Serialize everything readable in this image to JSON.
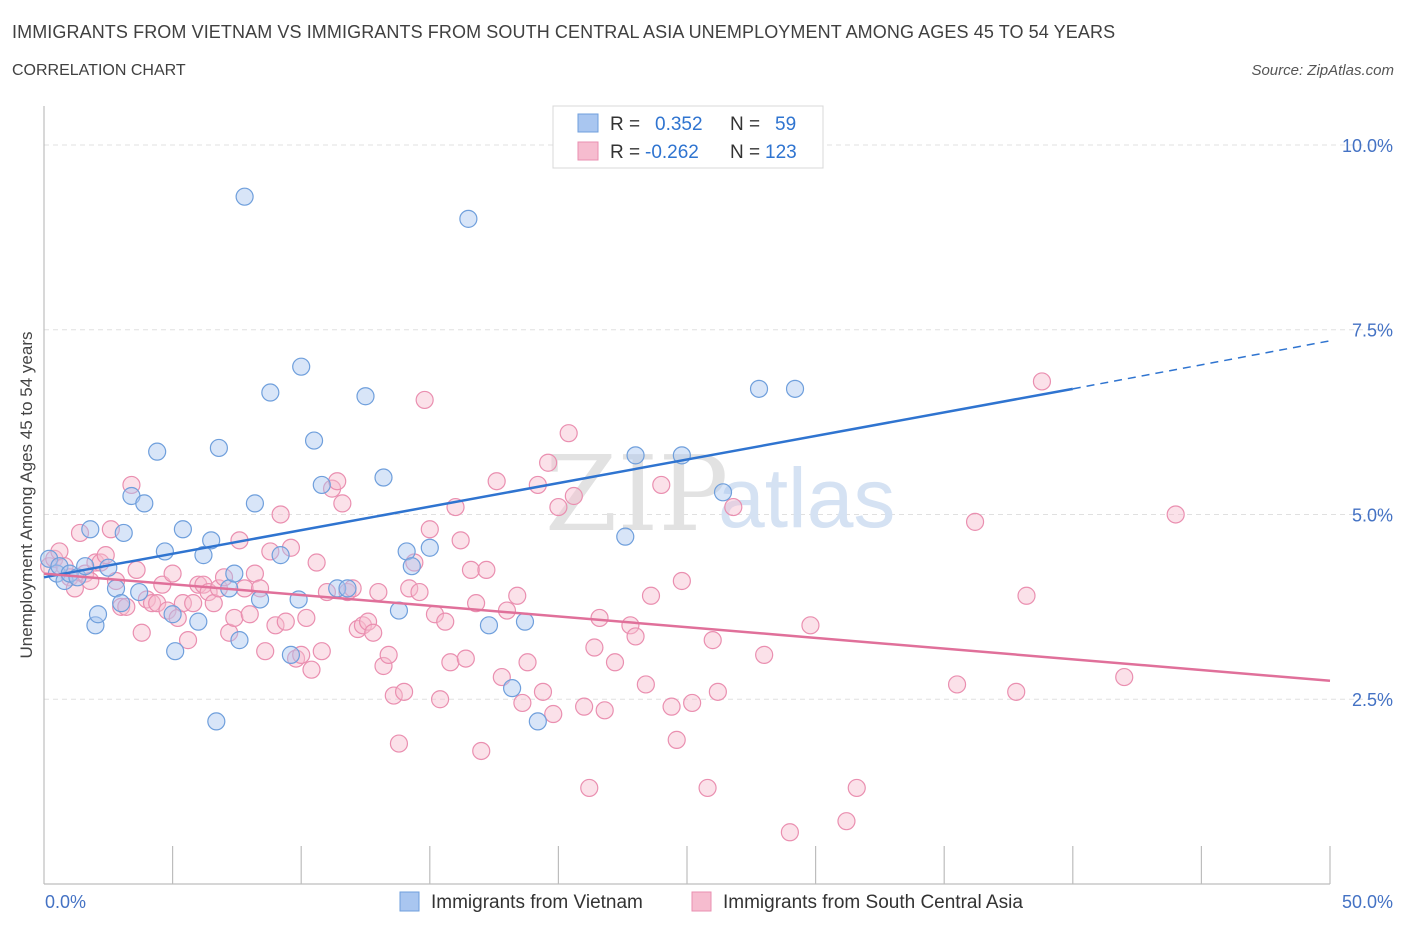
{
  "header": {
    "title": "IMMIGRANTS FROM VIETNAM VS IMMIGRANTS FROM SOUTH CENTRAL ASIA UNEMPLOYMENT AMONG AGES 45 TO 54 YEARS",
    "subtitle": "CORRELATION CHART",
    "source": "Source: ZipAtlas.com"
  },
  "watermark": {
    "zip": "ZIP",
    "atlas": "atlas"
  },
  "colors": {
    "blue_fill": "#a9c6f0",
    "blue_stroke": "#6f9fdc",
    "blue_line": "#2f74d0",
    "pink_fill": "#f6bccf",
    "pink_stroke": "#ea8fb0",
    "pink_line": "#e0709a",
    "axis_label": "#4472c4",
    "grid": "#e0e0e0"
  },
  "chart_data": {
    "type": "scatter",
    "title": "IMMIGRANTS FROM VIETNAM VS IMMIGRANTS FROM SOUTH CENTRAL ASIA UNEMPLOYMENT AMONG AGES 45 TO 54 YEARS",
    "xlabel": "",
    "ylabel": "Unemployment Among Ages 45 to 54 years",
    "xlim": [
      0,
      50
    ],
    "ylim": [
      0,
      10.5
    ],
    "x_tick_labels": [
      "0.0%",
      "50.0%"
    ],
    "y_ticks": [
      2.5,
      5.0,
      7.5,
      10.0
    ],
    "y_tick_labels": [
      "2.5%",
      "5.0%",
      "7.5%",
      "10.0%"
    ],
    "legend": {
      "position": "top-center",
      "rows": [
        {
          "r_label": "R =",
          "r_value": "0.352",
          "n_label": "N =",
          "n_value": "59"
        },
        {
          "r_label": "R =",
          "r_value": "-0.262",
          "n_label": "N =",
          "n_value": "123"
        }
      ]
    },
    "bottom_legend": [
      "Immigrants from Vietnam",
      "Immigrants from South Central Asia"
    ],
    "series": [
      {
        "name": "Immigrants from Vietnam",
        "r": 0.352,
        "n": 59,
        "trend": {
          "x0": 0,
          "y0": 4.15,
          "x1": 40,
          "y1": 6.7,
          "dash_to_x": 50,
          "dash_to_y": 7.35
        },
        "points": [
          [
            0.2,
            4.4
          ],
          [
            0.5,
            4.2
          ],
          [
            0.6,
            4.3
          ],
          [
            0.8,
            4.1
          ],
          [
            1.0,
            4.2
          ],
          [
            1.3,
            4.15
          ],
          [
            1.6,
            4.3
          ],
          [
            1.8,
            4.8
          ],
          [
            2.0,
            3.5
          ],
          [
            2.1,
            3.65
          ],
          [
            2.5,
            4.28
          ],
          [
            2.8,
            4.0
          ],
          [
            3.0,
            3.8
          ],
          [
            3.1,
            4.75
          ],
          [
            3.4,
            5.25
          ],
          [
            3.7,
            3.95
          ],
          [
            3.9,
            5.15
          ],
          [
            4.4,
            5.85
          ],
          [
            4.7,
            4.5
          ],
          [
            5.0,
            3.65
          ],
          [
            5.1,
            3.15
          ],
          [
            5.4,
            4.8
          ],
          [
            6.0,
            3.55
          ],
          [
            6.2,
            4.45
          ],
          [
            6.5,
            4.65
          ],
          [
            6.7,
            2.2
          ],
          [
            6.8,
            5.9
          ],
          [
            7.2,
            4.0
          ],
          [
            7.4,
            4.2
          ],
          [
            7.6,
            3.3
          ],
          [
            7.8,
            9.3
          ],
          [
            8.2,
            5.15
          ],
          [
            8.4,
            3.85
          ],
          [
            8.8,
            6.65
          ],
          [
            9.2,
            4.45
          ],
          [
            9.6,
            3.1
          ],
          [
            9.9,
            3.85
          ],
          [
            10.0,
            7.0
          ],
          [
            10.5,
            6.0
          ],
          [
            10.8,
            5.4
          ],
          [
            11.4,
            4.0
          ],
          [
            11.8,
            4.0
          ],
          [
            12.5,
            6.6
          ],
          [
            13.2,
            5.5
          ],
          [
            13.8,
            3.7
          ],
          [
            14.1,
            4.5
          ],
          [
            14.3,
            4.3
          ],
          [
            15.0,
            4.55
          ],
          [
            16.5,
            9.0
          ],
          [
            17.3,
            3.5
          ],
          [
            18.2,
            2.65
          ],
          [
            18.7,
            3.55
          ],
          [
            19.2,
            2.2
          ],
          [
            22.6,
            4.7
          ],
          [
            23.0,
            5.8
          ],
          [
            24.8,
            5.8
          ],
          [
            26.4,
            5.3
          ],
          [
            27.8,
            6.7
          ],
          [
            29.2,
            6.7
          ]
        ]
      },
      {
        "name": "Immigrants from South Central Asia",
        "r": -0.262,
        "n": 123,
        "trend": {
          "x0": 0,
          "y0": 4.2,
          "x1": 50,
          "y1": 2.75
        },
        "points": [
          [
            0.2,
            4.3
          ],
          [
            0.4,
            4.4
          ],
          [
            0.6,
            4.5
          ],
          [
            0.8,
            4.3
          ],
          [
            1.0,
            4.15
          ],
          [
            1.2,
            4.0
          ],
          [
            1.4,
            4.75
          ],
          [
            1.6,
            4.2
          ],
          [
            1.8,
            4.1
          ],
          [
            2.0,
            4.35
          ],
          [
            2.2,
            4.35
          ],
          [
            2.4,
            4.45
          ],
          [
            2.6,
            4.8
          ],
          [
            2.8,
            4.1
          ],
          [
            3.0,
            3.75
          ],
          [
            3.2,
            3.75
          ],
          [
            3.4,
            5.4
          ],
          [
            3.6,
            4.25
          ],
          [
            3.8,
            3.4
          ],
          [
            4.0,
            3.85
          ],
          [
            4.2,
            3.8
          ],
          [
            4.4,
            3.8
          ],
          [
            4.6,
            4.05
          ],
          [
            4.8,
            3.7
          ],
          [
            5.0,
            4.2
          ],
          [
            5.2,
            3.6
          ],
          [
            5.4,
            3.8
          ],
          [
            5.6,
            3.3
          ],
          [
            5.8,
            3.8
          ],
          [
            6.0,
            4.05
          ],
          [
            6.2,
            4.05
          ],
          [
            6.4,
            3.95
          ],
          [
            6.6,
            3.8
          ],
          [
            6.8,
            4.0
          ],
          [
            7.0,
            4.15
          ],
          [
            7.2,
            3.4
          ],
          [
            7.4,
            3.6
          ],
          [
            7.6,
            4.65
          ],
          [
            7.8,
            4.0
          ],
          [
            8.0,
            3.65
          ],
          [
            8.2,
            4.2
          ],
          [
            8.4,
            4.0
          ],
          [
            8.6,
            3.15
          ],
          [
            8.8,
            4.5
          ],
          [
            9.0,
            3.5
          ],
          [
            9.2,
            5.0
          ],
          [
            9.4,
            3.55
          ],
          [
            9.6,
            4.55
          ],
          [
            9.8,
            3.05
          ],
          [
            10.0,
            3.1
          ],
          [
            10.2,
            3.6
          ],
          [
            10.4,
            2.9
          ],
          [
            10.6,
            4.35
          ],
          [
            10.8,
            3.15
          ],
          [
            11.0,
            3.95
          ],
          [
            11.2,
            5.35
          ],
          [
            11.4,
            5.45
          ],
          [
            11.6,
            5.15
          ],
          [
            11.8,
            3.95
          ],
          [
            12.0,
            4.0
          ],
          [
            12.2,
            3.45
          ],
          [
            12.4,
            3.5
          ],
          [
            12.6,
            3.55
          ],
          [
            12.8,
            3.4
          ],
          [
            13.0,
            3.95
          ],
          [
            13.2,
            2.95
          ],
          [
            13.4,
            3.1
          ],
          [
            13.6,
            2.55
          ],
          [
            13.8,
            1.9
          ],
          [
            14.0,
            2.6
          ],
          [
            14.2,
            4.0
          ],
          [
            14.4,
            4.35
          ],
          [
            14.6,
            3.95
          ],
          [
            14.8,
            6.55
          ],
          [
            15.0,
            4.8
          ],
          [
            15.2,
            3.65
          ],
          [
            15.4,
            2.5
          ],
          [
            15.6,
            3.55
          ],
          [
            15.8,
            3.0
          ],
          [
            16.0,
            5.1
          ],
          [
            16.2,
            4.65
          ],
          [
            16.4,
            3.05
          ],
          [
            16.6,
            4.25
          ],
          [
            16.8,
            3.8
          ],
          [
            17.0,
            1.8
          ],
          [
            17.2,
            4.25
          ],
          [
            17.6,
            5.45
          ],
          [
            17.8,
            2.8
          ],
          [
            18.0,
            3.7
          ],
          [
            18.4,
            3.9
          ],
          [
            18.6,
            2.45
          ],
          [
            18.8,
            3.0
          ],
          [
            19.2,
            5.4
          ],
          [
            19.4,
            2.6
          ],
          [
            19.6,
            5.7
          ],
          [
            19.8,
            2.3
          ],
          [
            20.0,
            5.1
          ],
          [
            20.4,
            6.1
          ],
          [
            20.6,
            5.25
          ],
          [
            21.0,
            2.4
          ],
          [
            21.2,
            1.3
          ],
          [
            21.4,
            3.2
          ],
          [
            21.6,
            3.6
          ],
          [
            21.8,
            2.35
          ],
          [
            22.2,
            3.0
          ],
          [
            22.8,
            3.5
          ],
          [
            23.0,
            3.35
          ],
          [
            23.4,
            2.7
          ],
          [
            23.6,
            3.9
          ],
          [
            24.0,
            5.4
          ],
          [
            24.4,
            2.4
          ],
          [
            24.6,
            1.95
          ],
          [
            24.8,
            4.1
          ],
          [
            25.2,
            2.45
          ],
          [
            25.8,
            1.3
          ],
          [
            26.0,
            3.3
          ],
          [
            26.2,
            2.6
          ],
          [
            26.8,
            5.1
          ],
          [
            28.0,
            3.1
          ],
          [
            29.0,
            0.7
          ],
          [
            29.8,
            3.5
          ],
          [
            31.2,
            0.85
          ],
          [
            31.6,
            1.3
          ],
          [
            35.5,
            2.7
          ],
          [
            36.2,
            4.9
          ],
          [
            37.8,
            2.6
          ],
          [
            38.2,
            3.9
          ],
          [
            38.8,
            6.8
          ],
          [
            42.0,
            2.8
          ],
          [
            44.0,
            5.0
          ]
        ]
      }
    ]
  }
}
